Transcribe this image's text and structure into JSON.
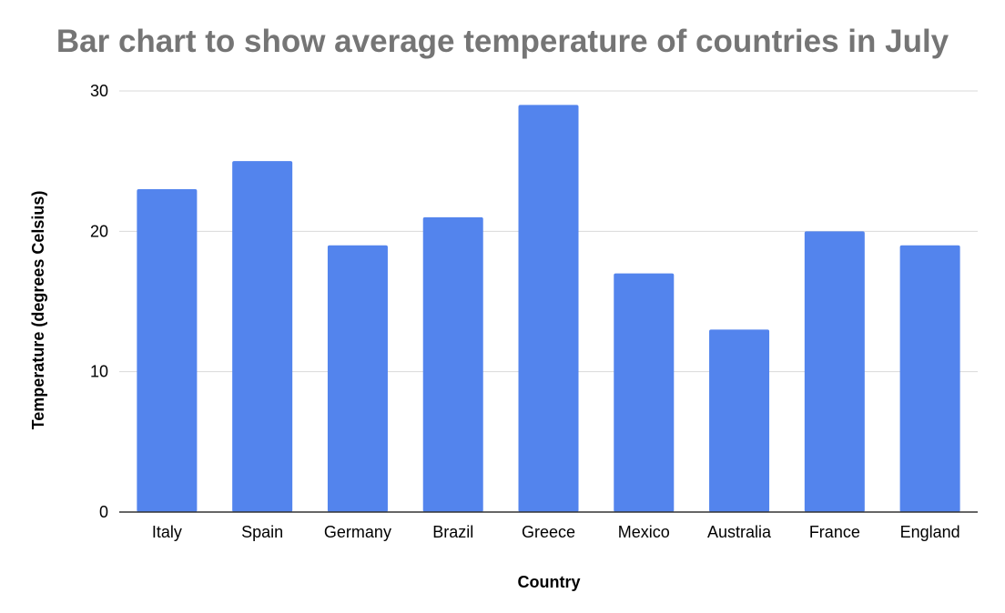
{
  "chart_data": {
    "type": "bar",
    "title": "Bar chart to show average temperature of countries in July",
    "xlabel": "Country",
    "ylabel": "Temperature (degrees Celsius)",
    "categories": [
      "Italy",
      "Spain",
      "Germany",
      "Brazil",
      "Greece",
      "Mexico",
      "Australia",
      "France",
      "England"
    ],
    "series": [
      {
        "values": [
          23,
          25,
          19,
          21,
          29,
          17,
          13,
          20,
          19
        ]
      }
    ],
    "ylim": [
      0,
      30
    ],
    "yticks": [
      0,
      10,
      20,
      30
    ],
    "grid": true,
    "legend": "none",
    "colors": {
      "bar": "#5384ED",
      "grid": "#d9d9d9",
      "axis": "#333333",
      "title": "#757575"
    }
  }
}
